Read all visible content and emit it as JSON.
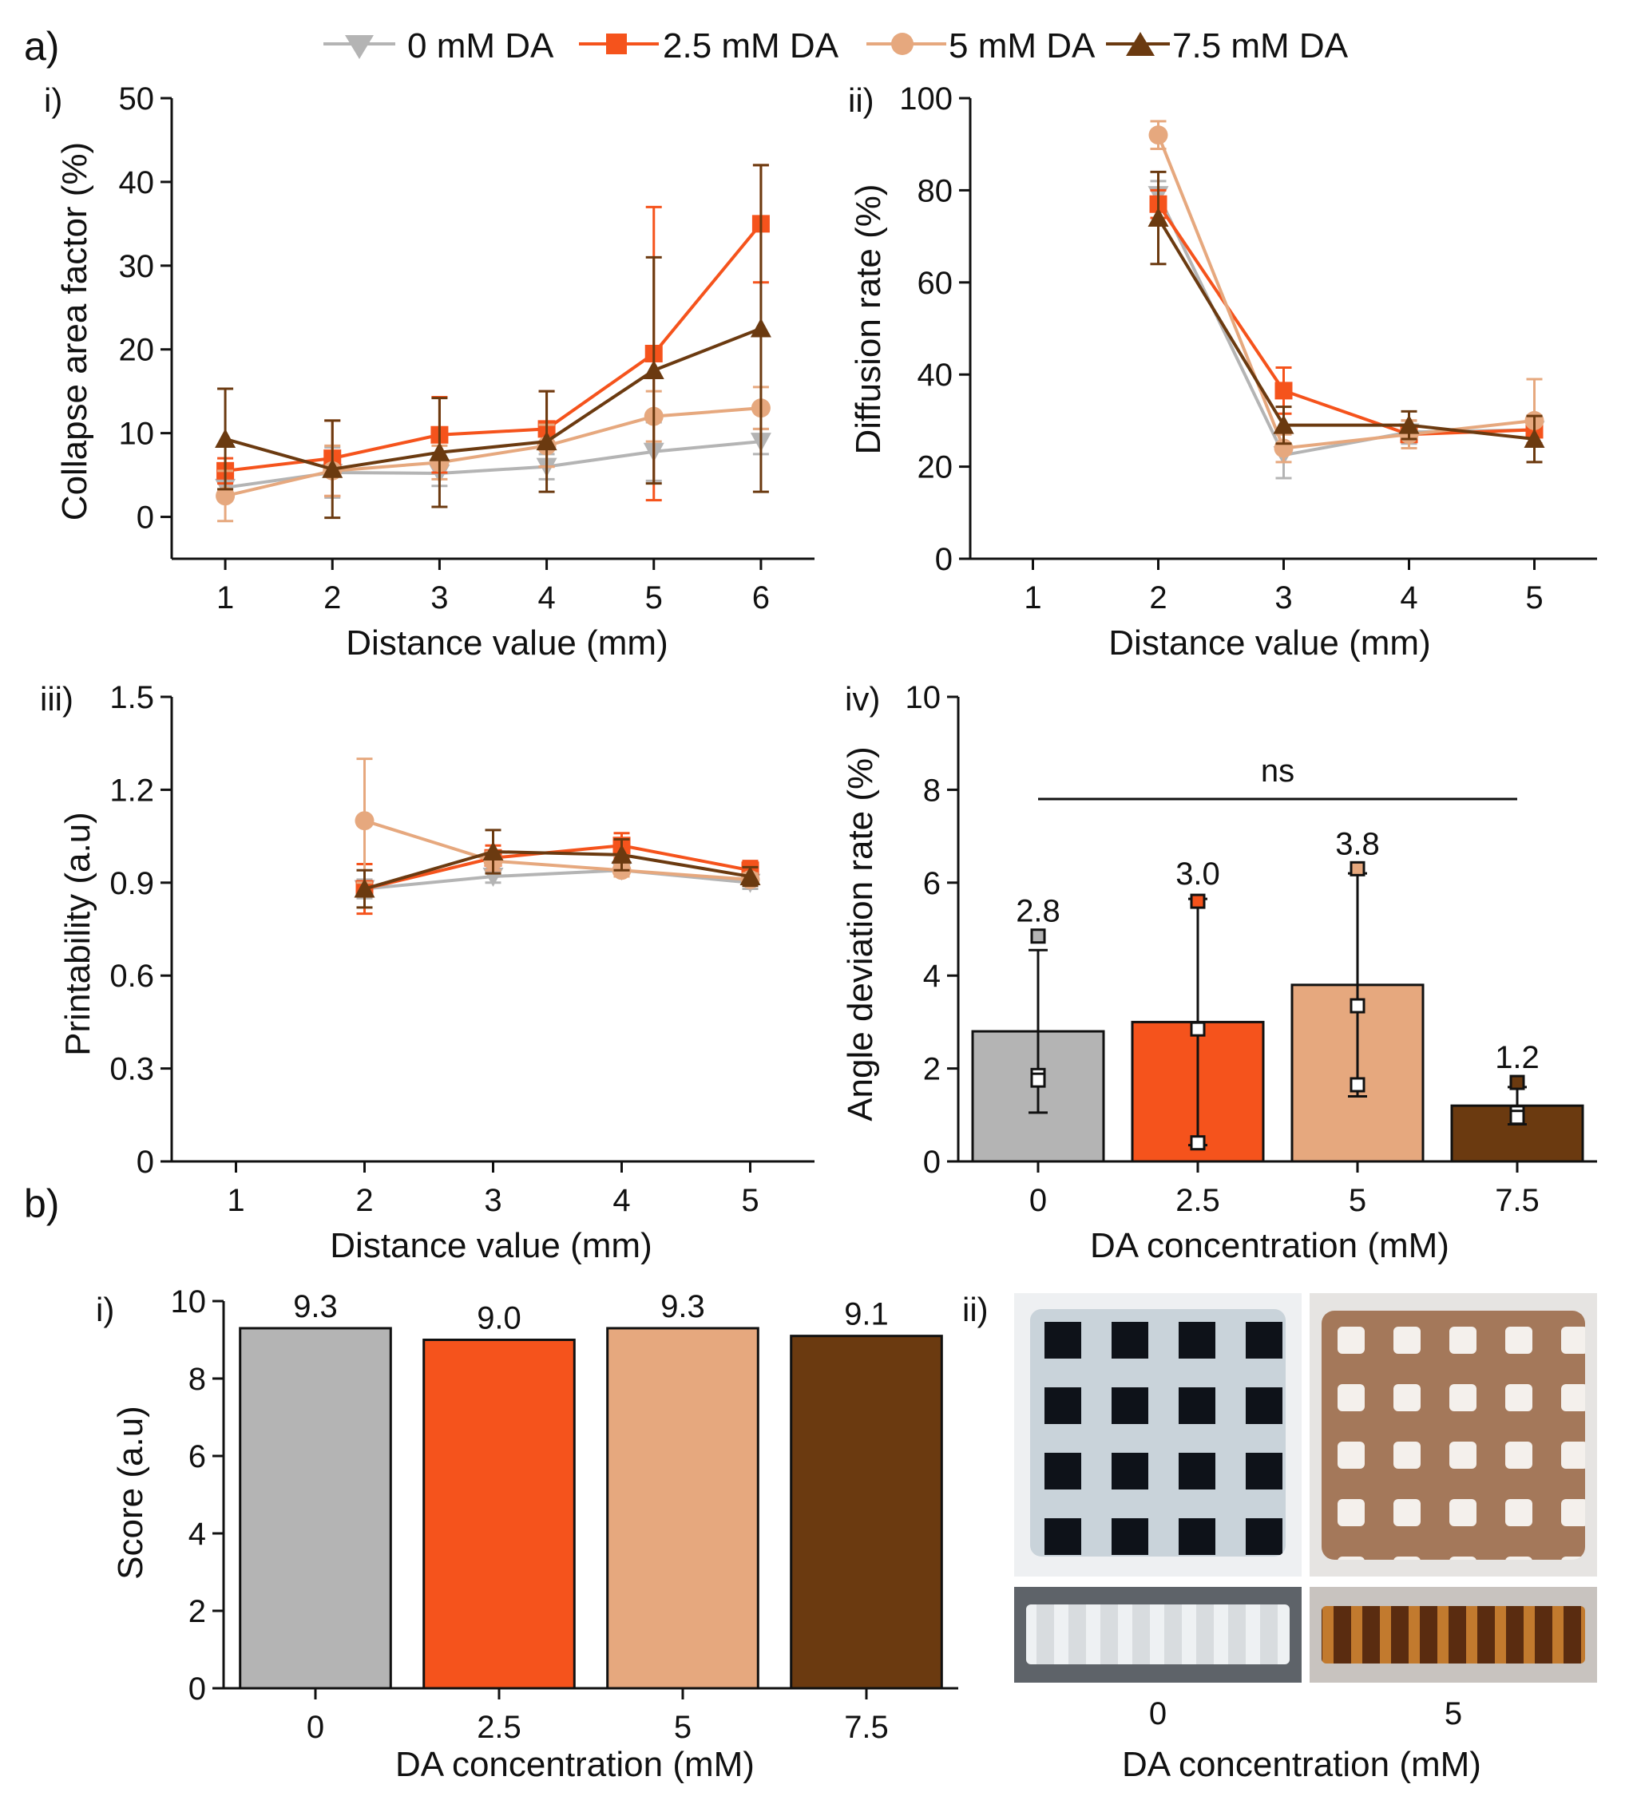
{
  "legend": {
    "entries": [
      {
        "label": "0 mM DA",
        "marker": "triangle-down",
        "color": "#b4b4b4"
      },
      {
        "label": "2.5 mM DA",
        "marker": "square",
        "color": "#f5531c"
      },
      {
        "label": "5 mM DA",
        "marker": "circle",
        "color": "#e6a87e"
      },
      {
        "label": "7.5 mM DA",
        "marker": "triangle-up",
        "color": "#6b3a10"
      }
    ]
  },
  "panel_labels": {
    "a": "a)",
    "b": "b)"
  },
  "chart_data": [
    {
      "id": "a-i",
      "panel": "i)",
      "type": "line",
      "xlabel": "Distance value (mm)",
      "ylabel": "Collapse area factor (%)",
      "x": [
        1,
        2,
        3,
        4,
        5,
        6
      ],
      "xlim": [
        0.5,
        6.5
      ],
      "ylim": [
        -5,
        50
      ],
      "yticks": [
        0,
        10,
        20,
        30,
        40,
        50
      ],
      "series": [
        {
          "name": "0 mM DA",
          "color": "#b4b4b4",
          "marker": "triangle-down",
          "values": [
            3.5,
            5.3,
            5.2,
            6.0,
            7.8,
            9.0
          ],
          "errors": [
            1.0,
            3.0,
            1.5,
            1.5,
            3.5,
            1.5
          ]
        },
        {
          "name": "2.5 mM DA",
          "color": "#f5531c",
          "marker": "square",
          "values": [
            5.5,
            7.0,
            9.8,
            10.5,
            19.5,
            35.0
          ],
          "errors": [
            1.5,
            4.5,
            4.5,
            4.5,
            17.5,
            7.0
          ]
        },
        {
          "name": "5 mM DA",
          "color": "#e6a87e",
          "marker": "circle",
          "values": [
            2.5,
            5.5,
            6.5,
            8.5,
            12.0,
            13.0
          ],
          "errors": [
            3.0,
            3.0,
            2.0,
            2.5,
            3.0,
            2.5
          ]
        },
        {
          "name": "7.5 mM DA",
          "color": "#6b3a10",
          "marker": "triangle-up",
          "values": [
            9.3,
            5.7,
            7.7,
            9.0,
            17.5,
            22.5
          ],
          "errors": [
            6.0,
            5.8,
            6.5,
            6.0,
            13.5,
            19.5
          ]
        }
      ]
    },
    {
      "id": "a-ii",
      "panel": "ii)",
      "type": "line",
      "xlabel": "Distance value (mm)",
      "ylabel": "Diffusion rate (%)",
      "x": [
        1,
        2,
        3,
        4,
        5
      ],
      "xlim": [
        0.5,
        5.5
      ],
      "ylim": [
        0,
        100
      ],
      "yticks": [
        0,
        20,
        40,
        60,
        80,
        100
      ],
      "series": [
        {
          "name": "0 mM DA",
          "color": "#b4b4b4",
          "marker": "triangle-down",
          "x": [
            2,
            3,
            4,
            5
          ],
          "values": [
            79,
            22.5,
            27.5,
            28
          ],
          "errors": [
            3,
            5,
            2.5,
            3
          ]
        },
        {
          "name": "2.5 mM DA",
          "color": "#f5531c",
          "marker": "square",
          "x": [
            2,
            3,
            4,
            5
          ],
          "values": [
            77,
            36.5,
            27,
            28
          ],
          "errors": [
            3,
            5,
            3,
            3
          ]
        },
        {
          "name": "5 mM DA",
          "color": "#e6a87e",
          "marker": "circle",
          "x": [
            2,
            3,
            4,
            5
          ],
          "values": [
            92,
            24,
            27,
            30
          ],
          "errors": [
            3,
            3,
            3,
            9
          ]
        },
        {
          "name": "7.5 mM DA",
          "color": "#6b3a10",
          "marker": "triangle-up",
          "x": [
            2,
            3,
            4,
            5
          ],
          "values": [
            74,
            29,
            29,
            26
          ],
          "errors": [
            10,
            4,
            3,
            5
          ]
        }
      ]
    },
    {
      "id": "a-iii",
      "panel": "iii)",
      "type": "line",
      "xlabel": "Distance value (mm)",
      "ylabel": "Printability (a.u)",
      "x": [
        1,
        2,
        3,
        4,
        5
      ],
      "xlim": [
        0.5,
        5.5
      ],
      "ylim": [
        0,
        1.5
      ],
      "yticks": [
        0,
        0.3,
        0.6,
        0.9,
        1.2,
        1.5
      ],
      "yticklabels": [
        "0",
        "0.3",
        "0.6",
        "0.9",
        "1.2",
        "1.5"
      ],
      "series": [
        {
          "name": "0 mM DA",
          "color": "#b4b4b4",
          "marker": "triangle-down",
          "x": [
            2,
            3,
            4,
            5
          ],
          "values": [
            0.88,
            0.92,
            0.94,
            0.9
          ],
          "errors": [
            0.03,
            0.02,
            0.02,
            0.02
          ]
        },
        {
          "name": "2.5 mM DA",
          "color": "#f5531c",
          "marker": "square",
          "x": [
            2,
            3,
            4,
            5
          ],
          "values": [
            0.88,
            0.98,
            1.02,
            0.94
          ],
          "errors": [
            0.08,
            0.04,
            0.04,
            0.03
          ]
        },
        {
          "name": "5 mM DA",
          "color": "#e6a87e",
          "marker": "circle",
          "x": [
            2,
            3,
            4,
            5
          ],
          "values": [
            1.1,
            0.97,
            0.94,
            0.91
          ],
          "errors": [
            0.2,
            0.03,
            0.02,
            0.02
          ]
        },
        {
          "name": "7.5 mM DA",
          "color": "#6b3a10",
          "marker": "triangle-up",
          "x": [
            2,
            3,
            4,
            5
          ],
          "values": [
            0.88,
            1.0,
            0.99,
            0.92
          ],
          "errors": [
            0.06,
            0.07,
            0.05,
            0.03
          ]
        }
      ]
    },
    {
      "id": "a-iv",
      "panel": "iv)",
      "type": "bar",
      "xlabel": "DA concentration (mM)",
      "ylabel": "Angle deviation rate (%)",
      "categories": [
        "0",
        "2.5",
        "5",
        "7.5"
      ],
      "ylim": [
        0,
        10
      ],
      "yticks": [
        0,
        2,
        4,
        6,
        8,
        10
      ],
      "values": [
        2.8,
        3.0,
        3.8,
        1.2
      ],
      "errors": [
        1.75,
        2.65,
        2.4,
        0.4
      ],
      "data_labels": [
        "2.8",
        "3.0",
        "3.8",
        "1.2"
      ],
      "colors": [
        "#b4b4b4",
        "#f5531c",
        "#e6a87e",
        "#6b3a10"
      ],
      "points": [
        [
          4.85,
          1.85,
          1.75
        ],
        [
          5.6,
          2.85,
          0.4
        ],
        [
          6.3,
          3.35,
          1.65
        ],
        [
          1.7,
          1.05,
          0.95
        ]
      ],
      "annotation": "ns"
    },
    {
      "id": "b-i",
      "panel": "i)",
      "type": "bar",
      "xlabel": "DA concentration (mM)",
      "ylabel": "Score (a.u)",
      "categories": [
        "0",
        "2.5",
        "5",
        "7.5"
      ],
      "ylim": [
        0,
        10
      ],
      "yticks": [
        0,
        2,
        4,
        6,
        8,
        10
      ],
      "values": [
        9.3,
        9.0,
        9.3,
        9.1
      ],
      "data_labels": [
        "9.3",
        "9.0",
        "9.3",
        "9.1"
      ],
      "colors": [
        "#b4b4b4",
        "#f5531c",
        "#e6a87e",
        "#6b3a10"
      ]
    }
  ],
  "photos": {
    "panel": "ii)",
    "xlabel": "DA concentration (mM)",
    "columns": [
      "0",
      "5"
    ]
  }
}
